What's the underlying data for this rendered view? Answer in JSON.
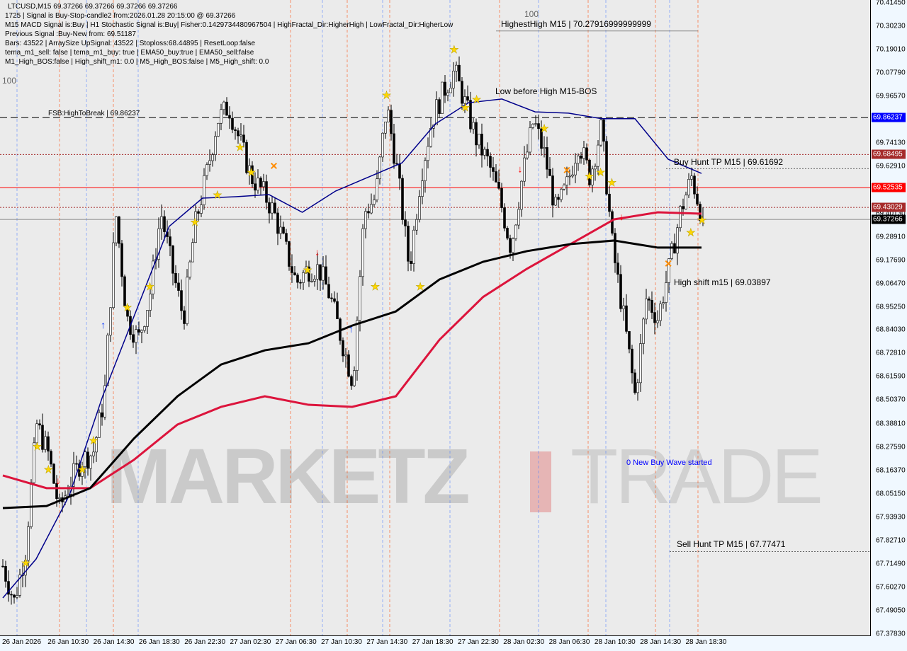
{
  "header": {
    "lines": [
      "LTCUSD,M15  69.37266 69.37266 69.37266 69.37266",
      "1725 | Signal is Buy-Stop-candle2 from:2026.01.28 20:15:00 @ 69.37266",
      "M15 MACD Signal is:Buy | H1 Stochastic Signal is:Buy| Fisher:0.1429734480967504 | HighFractal_Dir:HigherHigh | LowFractal_Dir:HigherLow",
      "Previous Signal :Buy-New from: 69.51187",
      "Bars: 43522 | ArraySize UpSignal: 43522 | Stoploss:68.44895 | ResetLoop:false",
      "tema_m1_sell: false | tema_m1_buy: true | EMA50_buy:true | EMA50_sell:false",
      "M1_High_BOS:false | High_shift_m1: 0.0 | M5_High_BOS:false | M5_High_shift: 0.0"
    ]
  },
  "annotations": {
    "highest_high": "HighestHigh   M15 | 70.27916999999999",
    "low_before_high": "Low before High   M15-BOS",
    "fsb": "FSB:HighToBreak | 69.86237",
    "buy_hunt": "Buy Hunt TP M15 | 69.61692",
    "high_shift": "High shift m15 | 69.03897",
    "new_wave": "0 New Buy Wave started",
    "sell_hunt": "Sell Hunt TP M15 | 67.77471",
    "label_100_top": "100",
    "label_100_left": "100"
  },
  "watermark": {
    "left": "MARKETZ",
    "right": "TRADE"
  },
  "chart_data": {
    "type": "candlestick",
    "symbol": "LTCUSD",
    "timeframe": "M15",
    "ylim": [
      67.3783,
      70.4145
    ],
    "y_ticks": [
      "70.41450",
      "70.30230",
      "70.19010",
      "70.07790",
      "69.96570",
      "69.74130",
      "69.62910",
      "69.40130",
      "69.28910",
      "69.17690",
      "69.06470",
      "68.95250",
      "68.84030",
      "68.72810",
      "68.61590",
      "68.50370",
      "68.38810",
      "68.27590",
      "68.16370",
      "68.05150",
      "67.93930",
      "67.82710",
      "67.71490",
      "67.60270",
      "67.49050",
      "67.37830"
    ],
    "x_ticks": [
      "26 Jan 2026",
      "26 Jan 10:30",
      "26 Jan 14:30",
      "26 Jan 18:30",
      "26 Jan 22:30",
      "27 Jan 02:30",
      "27 Jan 06:30",
      "27 Jan 10:30",
      "27 Jan 14:30",
      "27 Jan 18:30",
      "27 Jan 22:30",
      "28 Jan 02:30",
      "28 Jan 06:30",
      "28 Jan 10:30",
      "28 Jan 14:30",
      "28 Jan 18:30"
    ],
    "price_path": [
      67.705,
      67.535,
      67.773,
      68.386,
      68.25,
      67.977,
      68.114,
      68.216,
      68.25,
      68.522,
      69.407,
      68.896,
      68.794,
      69.0,
      69.407,
      69.135,
      68.896,
      69.339,
      69.577,
      69.85,
      69.918,
      69.747,
      69.577,
      69.509,
      69.407,
      69.237,
      69.067,
      69.135,
      69.135,
      69.0,
      68.794,
      68.59,
      69.407,
      69.475,
      69.918,
      69.577,
      69.135,
      69.577,
      69.85,
      69.986,
      70.088,
      69.918,
      69.747,
      69.645,
      69.475,
      69.237,
      69.577,
      69.85,
      69.679,
      69.407,
      69.543,
      69.747,
      69.577,
      69.816,
      69.237,
      68.896,
      68.522,
      69.0,
      68.896,
      69.135,
      69.407,
      69.577,
      69.37266
    ],
    "ma_lines": [
      {
        "color": "#00008b",
        "values": [
          67.552,
          67.739,
          68.046,
          68.522,
          68.93,
          69.339,
          69.475,
          69.482,
          69.492,
          69.407,
          69.509,
          69.577,
          69.645,
          69.832,
          69.934,
          69.952,
          69.89,
          69.884,
          69.857,
          69.857,
          69.662,
          69.594
        ]
      },
      {
        "color": "#dc143c",
        "values": [
          68.141,
          68.08,
          68.08,
          68.216,
          68.386,
          68.471,
          68.522,
          68.481,
          68.471,
          68.522,
          68.794,
          69.0,
          69.135,
          69.254,
          69.373,
          69.407,
          69.4
        ]
      },
      {
        "color": "#000000",
        "values": [
          67.984,
          67.994,
          68.08,
          68.318,
          68.522,
          68.675,
          68.743,
          68.777,
          68.862,
          68.93,
          69.084,
          69.169,
          69.22,
          69.254,
          69.271,
          69.237,
          69.237
        ]
      }
    ],
    "levels": [
      {
        "price": 69.86237,
        "label": "69.86237",
        "color": "#0000ff",
        "style": "dashed-black"
      },
      {
        "price": 69.68495,
        "label": "69.68495",
        "color": "#a52a2a",
        "style": "dotted"
      },
      {
        "price": 69.52535,
        "label": "69.52535",
        "color": "#ff0000",
        "style": "solid"
      },
      {
        "price": 69.43029,
        "label": "69.43029",
        "color": "#a52a2a",
        "style": "dotted"
      },
      {
        "price": 69.37266,
        "label": "69.37266",
        "color": "#000000",
        "style": "solid-gray"
      }
    ],
    "buy_hunt_tp": 69.61692,
    "sell_hunt_tp": 67.77471,
    "highest_high": 70.27917,
    "markers": [
      {
        "i": 2,
        "p": 67.72,
        "t": "star"
      },
      {
        "i": 3,
        "p": 68.28,
        "t": "star"
      },
      {
        "i": 4,
        "p": 68.17,
        "t": "star"
      },
      {
        "i": 5,
        "p": 68.12,
        "t": "sell"
      },
      {
        "i": 7,
        "p": 68.17,
        "t": "star"
      },
      {
        "i": 8,
        "p": 68.31,
        "t": "star"
      },
      {
        "i": 9,
        "p": 68.87,
        "t": "buy"
      },
      {
        "i": 11,
        "p": 68.95,
        "t": "star"
      },
      {
        "i": 13,
        "p": 69.05,
        "t": "star"
      },
      {
        "i": 17,
        "p": 69.36,
        "t": "star"
      },
      {
        "i": 19,
        "p": 69.49,
        "t": "star"
      },
      {
        "i": 21,
        "p": 69.72,
        "t": "star"
      },
      {
        "i": 22,
        "p": 69.6,
        "t": "star"
      },
      {
        "i": 24,
        "p": 69.63,
        "t": "cross"
      },
      {
        "i": 27,
        "p": 69.13,
        "t": "star"
      },
      {
        "i": 28,
        "p": 69.22,
        "t": "sell"
      },
      {
        "i": 31,
        "p": 68.85,
        "t": "buy"
      },
      {
        "i": 33,
        "p": 69.05,
        "t": "star"
      },
      {
        "i": 34,
        "p": 69.97,
        "t": "star"
      },
      {
        "i": 37,
        "p": 69.05,
        "t": "star"
      },
      {
        "i": 40,
        "p": 70.19,
        "t": "star"
      },
      {
        "i": 41,
        "p": 69.91,
        "t": "star"
      },
      {
        "i": 42,
        "p": 69.95,
        "t": "star"
      },
      {
        "i": 46,
        "p": 69.62,
        "t": "sell"
      },
      {
        "i": 48,
        "p": 69.81,
        "t": "star"
      },
      {
        "i": 50,
        "p": 69.61,
        "t": "cross"
      },
      {
        "i": 52,
        "p": 69.58,
        "t": "star"
      },
      {
        "i": 53,
        "p": 69.6,
        "t": "star"
      },
      {
        "i": 54,
        "p": 69.55,
        "t": "star"
      },
      {
        "i": 55,
        "p": 69.39,
        "t": "sell"
      },
      {
        "i": 59,
        "p": 69.16,
        "t": "cross"
      },
      {
        "i": 61,
        "p": 69.31,
        "t": "star"
      },
      {
        "i": 62,
        "p": 69.37,
        "t": "star"
      }
    ]
  }
}
